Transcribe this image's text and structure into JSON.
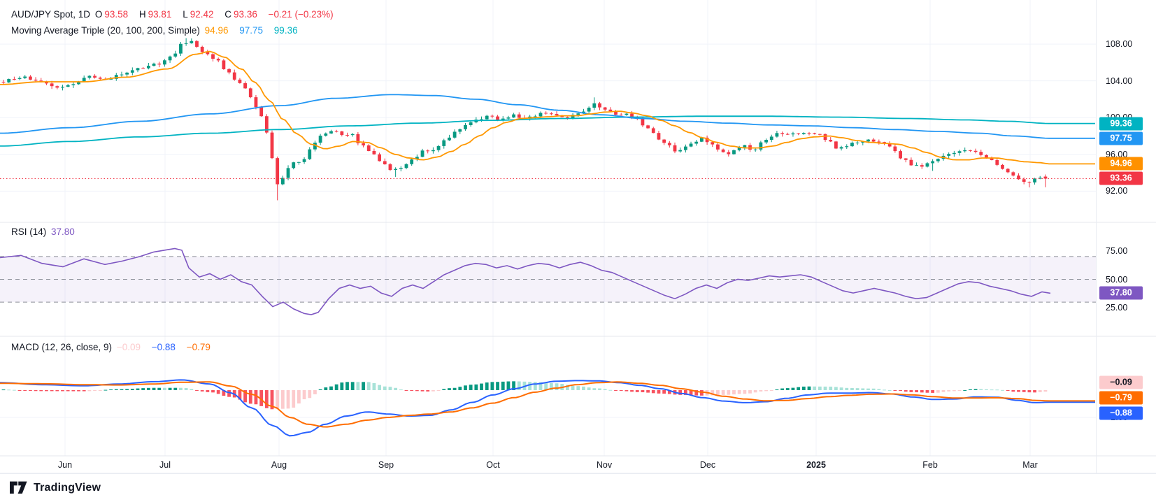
{
  "colors": {
    "up": "#089981",
    "down": "#F23645",
    "ma20": "#FF9800",
    "ma100": "#2196F3",
    "ma200": "#00B3C2",
    "macd_line": "#2962FF",
    "signal_line": "#FF6D00",
    "hist_pos": "#089981",
    "hist_pos_light": "#A8E2D8",
    "hist_neg": "#F7525F",
    "hist_neg_light": "#FCCBCD",
    "rsi_line": "#7E57C2",
    "rsi_band_fill": "rgba(126,87,194,0.08)",
    "rsi_dash": "#8A8E98",
    "grid": "#F0F3FA",
    "separator": "#E4E7EE",
    "last_price": "#F23645",
    "text": "#131722"
  },
  "legend_main": {
    "symbol": "AUD/JPY Spot, 1D",
    "o_label": "O",
    "o_value": "93.58",
    "h_label": "H",
    "h_value": "93.81",
    "l_label": "L",
    "l_value": "92.42",
    "c_label": "C",
    "c_value": "93.36",
    "change": "−0.21 (−0.23%)"
  },
  "legend_ma": {
    "title": "Moving Average Triple (20, 100, 200, Simple)",
    "ma20_value": "94.96",
    "ma100_value": "97.75",
    "ma200_value": "99.36"
  },
  "legend_rsi": {
    "title": "RSI (14)",
    "value": "37.80"
  },
  "legend_macd": {
    "title": "MACD (12, 26, close, 9)",
    "hist_value": "−0.09",
    "macd_value": "−0.88",
    "signal_value": "−0.79"
  },
  "footer": {
    "brand": "TradingView"
  },
  "chart_data": {
    "type": "candlestick",
    "main": {
      "type": "candlestick",
      "symbol": "AUD/JPY Spot",
      "interval": "1D",
      "last": {
        "o": 93.58,
        "h": 93.81,
        "l": 92.42,
        "c": 93.36,
        "change": -0.21,
        "change_pct": -0.23
      },
      "ylim": [
        88.6,
        112.8
      ],
      "yticks": [
        {
          "v": 108,
          "label": "108.00"
        },
        {
          "v": 104,
          "label": "104.00"
        },
        {
          "v": 100,
          "label": "100.00"
        },
        {
          "v": 96,
          "label": "96.00"
        },
        {
          "v": 92,
          "label": "92.00"
        }
      ],
      "badges": [
        {
          "v": 99.36,
          "label": "99.36",
          "bg": "#00B3C2"
        },
        {
          "v": 97.75,
          "label": "97.75",
          "bg": "#2196F3"
        },
        {
          "v": 94.96,
          "label": "94.96",
          "bg": "#FF9100"
        },
        {
          "v": 93.36,
          "label": "93.36",
          "bg": "#F23645"
        }
      ],
      "last_price_line": 93.36,
      "close_path": {
        "x": [
          0,
          30,
          60,
          80,
          105,
          125,
          150,
          175,
          200,
          225,
          245,
          262,
          272,
          282,
          295,
          310,
          325,
          340,
          352,
          362,
          372,
          380,
          388,
          397,
          404,
          412,
          422,
          432,
          442,
          452,
          462,
          472,
          482,
          492,
          502,
          512,
          522,
          532,
          542,
          552,
          562,
          570,
          580,
          592,
          604,
          616,
          628,
          640,
          652,
          664,
          676,
          688,
          700,
          712,
          724,
          736,
          748,
          760,
          772,
          784,
          796,
          808,
          820,
          832,
          844,
          852,
          860,
          872,
          884,
          896,
          908,
          920,
          932,
          944,
          956,
          968,
          980,
          992,
          1004,
          1016,
          1028,
          1040,
          1052,
          1064,
          1076,
          1088,
          1100,
          1112,
          1124,
          1136,
          1148,
          1160,
          1172,
          1184,
          1196,
          1208,
          1220,
          1232,
          1244,
          1256,
          1268,
          1280,
          1292,
          1304,
          1316,
          1328,
          1340,
          1352,
          1364,
          1376,
          1388,
          1400,
          1412,
          1424,
          1436,
          1448,
          1460,
          1470,
          1480,
          1490,
          1502
        ],
        "v": [
          103.9,
          104.4,
          103.8,
          103.3,
          103.6,
          104.5,
          104.1,
          104.7,
          105.4,
          105.8,
          106.6,
          108.1,
          108.4,
          107.6,
          107.0,
          106.3,
          104.9,
          103.9,
          103.1,
          101.7,
          100.2,
          98.6,
          95.8,
          92.8,
          93.4,
          94.6,
          95.3,
          95.2,
          96.5,
          97.4,
          98.2,
          98.6,
          98.4,
          97.9,
          98.3,
          97.3,
          96.8,
          96.2,
          95.3,
          94.8,
          94.2,
          94.5,
          94.8,
          95.6,
          96.3,
          96.2,
          97.0,
          97.8,
          98.5,
          99.2,
          99.6,
          99.9,
          100.2,
          99.7,
          99.9,
          100.3,
          99.9,
          100.1,
          100.4,
          100.6,
          100.2,
          99.9,
          100.3,
          100.5,
          101.2,
          101.6,
          100.9,
          100.6,
          100.3,
          100.5,
          100.0,
          99.2,
          98.4,
          97.6,
          96.9,
          96.3,
          96.9,
          97.3,
          97.8,
          97.2,
          96.4,
          96.0,
          96.5,
          96.9,
          96.4,
          97.2,
          97.9,
          98.3,
          98.1,
          98.3,
          98.2,
          98.4,
          98.1,
          97.5,
          96.6,
          96.8,
          97.2,
          97.4,
          97.6,
          97.3,
          97.1,
          96.3,
          95.4,
          94.9,
          94.7,
          95.0,
          95.4,
          95.9,
          96.2,
          96.5,
          96.4,
          96.1,
          95.6,
          95.0,
          94.4,
          93.8,
          93.2,
          93.0,
          93.3,
          93.6,
          93.36
        ]
      },
      "wick_lows": [
        [
          397,
          91.0
        ],
        [
          566,
          93.55
        ],
        [
          1330,
          94.2
        ],
        [
          1470,
          92.4
        ]
      ],
      "wick_highs": [
        [
          268,
          108.65
        ],
        [
          850,
          102.2
        ]
      ],
      "ma": [
        {
          "name": "SMA 20",
          "period": 20,
          "current": 94.96,
          "color": "#FF9800",
          "path": {
            "x": [
              0,
              60,
              120,
              180,
              240,
              280,
              300,
              320,
              345,
              365,
              385,
              405,
              425,
              445,
              465,
              485,
              505,
              525,
              545,
              565,
              585,
              605,
              625,
              645,
              665,
              685,
              705,
              725,
              745,
              765,
              785,
              805,
              825,
              845,
              865,
              885,
              905,
              925,
              945,
              965,
              985,
              1005,
              1025,
              1045,
              1065,
              1085,
              1105,
              1125,
              1145,
              1165,
              1185,
              1205,
              1225,
              1245,
              1265,
              1285,
              1305,
              1325,
              1345,
              1365,
              1385,
              1405,
              1425,
              1445,
              1465,
              1485,
              1502
            ],
            "v": [
              103.6,
              103.9,
              103.9,
              104.4,
              105.3,
              106.9,
              107.2,
              106.6,
              105.3,
              103.8,
              101.9,
              99.8,
              98.2,
              97.1,
              96.6,
              96.9,
              97.4,
              97.3,
              96.7,
              96.0,
              95.6,
              95.4,
              95.7,
              96.3,
              97.1,
              98.0,
              98.9,
              99.5,
              99.9,
              100.0,
              100.1,
              100.2,
              100.2,
              100.4,
              100.6,
              100.7,
              100.5,
              100.2,
              99.7,
              99.1,
              98.4,
              97.8,
              97.3,
              96.9,
              96.7,
              96.7,
              96.9,
              97.3,
              97.7,
              97.9,
              98.0,
              97.8,
              97.5,
              97.3,
              97.2,
              97.1,
              96.7,
              96.2,
              95.7,
              95.4,
              95.4,
              95.6,
              95.6,
              95.4,
              95.2,
              95.1,
              94.96
            ]
          }
        },
        {
          "name": "SMA 100",
          "period": 100,
          "current": 97.75,
          "color": "#2196F3",
          "path": {
            "x": [
              0,
              100,
              200,
              300,
              400,
              480,
              560,
              620,
              680,
              740,
              800,
              860,
              920,
              980,
              1040,
              1100,
              1160,
              1220,
              1280,
              1340,
              1400,
              1450,
              1502
            ],
            "v": [
              98.3,
              98.9,
              99.6,
              100.4,
              101.3,
              102.1,
              102.5,
              102.4,
              102.0,
              101.4,
              100.8,
              100.3,
              99.9,
              99.6,
              99.4,
              99.2,
              99.1,
              98.9,
              98.7,
              98.5,
              98.3,
              98.0,
              97.75
            ]
          }
        },
        {
          "name": "SMA 200",
          "period": 200,
          "current": 99.36,
          "color": "#00B3C2",
          "path": {
            "x": [
              0,
              100,
              200,
              300,
              400,
              500,
              600,
              700,
              800,
              900,
              1000,
              1100,
              1200,
              1300,
              1380,
              1440,
              1502
            ],
            "v": [
              96.9,
              97.4,
              97.9,
              98.3,
              98.7,
              99.1,
              99.4,
              99.7,
              99.9,
              100.05,
              100.15,
              100.15,
              100.05,
              99.9,
              99.75,
              99.6,
              99.36
            ]
          }
        }
      ]
    },
    "rsi": {
      "type": "line",
      "period": 14,
      "current": 37.8,
      "ylim": [
        0,
        100
      ],
      "bands": [
        70,
        50,
        30
      ],
      "yticks": [
        {
          "v": 75,
          "label": "75.00"
        },
        {
          "v": 50,
          "label": "50.00"
        },
        {
          "v": 25,
          "label": "25.00"
        }
      ],
      "badges": [
        {
          "v": 37.8,
          "label": "37.80",
          "bg": "#7E57C2"
        }
      ],
      "path": {
        "x": [
          0,
          30,
          60,
          90,
          120,
          150,
          175,
          200,
          220,
          240,
          250,
          260,
          270,
          285,
          300,
          315,
          330,
          345,
          360,
          375,
          390,
          405,
          420,
          435,
          445,
          455,
          470,
          485,
          500,
          515,
          530,
          545,
          560,
          575,
          590,
          605,
          620,
          635,
          650,
          665,
          680,
          695,
          710,
          725,
          740,
          755,
          770,
          785,
          800,
          815,
          830,
          845,
          860,
          875,
          890,
          905,
          920,
          935,
          950,
          965,
          980,
          995,
          1010,
          1025,
          1040,
          1055,
          1070,
          1085,
          1100,
          1115,
          1130,
          1145,
          1160,
          1175,
          1190,
          1205,
          1220,
          1235,
          1250,
          1265,
          1280,
          1295,
          1310,
          1325,
          1340,
          1355,
          1370,
          1385,
          1400,
          1415,
          1430,
          1445,
          1460,
          1475,
          1490,
          1502
        ],
        "v": [
          69,
          71,
          64,
          61,
          68,
          63,
          66,
          70,
          74,
          76,
          77,
          75.5,
          60,
          52,
          55,
          50,
          54,
          48,
          45,
          35,
          26,
          30,
          24,
          20,
          19,
          21,
          33,
          42,
          45,
          42,
          44,
          38,
          35,
          42,
          45,
          42,
          48,
          54,
          58,
          62,
          64,
          63,
          60,
          62,
          59,
          62,
          64,
          63,
          60,
          63,
          65,
          62,
          58,
          56,
          52,
          48,
          44,
          40,
          36,
          33,
          37,
          42,
          45,
          42,
          47,
          50,
          49,
          51,
          53,
          52,
          53,
          54,
          52,
          48,
          44,
          40,
          38,
          40,
          42,
          40,
          38,
          35,
          33,
          34,
          38,
          42,
          46,
          48,
          47,
          44,
          42,
          40,
          37,
          35,
          39,
          37.8
        ]
      }
    },
    "macd": {
      "type": "macd",
      "params": "12, 26, close, 9",
      "hist": -0.09,
      "macd": -0.88,
      "signal": -0.79,
      "ylim": [
        -4.82,
        3.95
      ],
      "yticks": [
        {
          "v": -2,
          "label": "−2.00"
        }
      ],
      "badges": [
        {
          "v": -0.09,
          "label": "−0.09",
          "bg": "#FCCBCD",
          "fg": "#131722"
        },
        {
          "v": -0.79,
          "label": "−0.79",
          "bg": "#FF6D00"
        },
        {
          "v": -0.88,
          "label": "−0.88",
          "bg": "#2962FF"
        }
      ],
      "macd_path": {
        "x": [
          0,
          60,
          120,
          170,
          220,
          260,
          300,
          330,
          360,
          390,
          415,
          440,
          465,
          495,
          525,
          555,
          585,
          615,
          645,
          675,
          705,
          735,
          765,
          795,
          825,
          855,
          885,
          915,
          945,
          975,
          1005,
          1035,
          1065,
          1095,
          1125,
          1155,
          1185,
          1215,
          1245,
          1275,
          1305,
          1335,
          1365,
          1395,
          1425,
          1455,
          1480,
          1502
        ],
        "v": [
          0.55,
          0.4,
          0.32,
          0.45,
          0.62,
          0.75,
          0.45,
          -0.2,
          -1.3,
          -2.6,
          -3.35,
          -3.1,
          -2.5,
          -1.9,
          -1.6,
          -1.75,
          -1.9,
          -1.85,
          -1.45,
          -0.9,
          -0.35,
          0.1,
          0.45,
          0.65,
          0.7,
          0.68,
          0.55,
          0.35,
          0.1,
          -0.25,
          -0.55,
          -0.8,
          -0.92,
          -0.85,
          -0.6,
          -0.35,
          -0.22,
          -0.22,
          -0.18,
          -0.28,
          -0.5,
          -0.68,
          -0.65,
          -0.5,
          -0.52,
          -0.75,
          -0.92,
          -0.88
        ]
      },
      "signal_path": {
        "x": [
          0,
          60,
          120,
          170,
          220,
          260,
          300,
          330,
          360,
          390,
          415,
          440,
          465,
          495,
          525,
          555,
          585,
          615,
          645,
          675,
          705,
          735,
          765,
          795,
          825,
          855,
          885,
          915,
          945,
          975,
          1005,
          1035,
          1065,
          1095,
          1125,
          1155,
          1185,
          1215,
          1245,
          1275,
          1305,
          1335,
          1365,
          1395,
          1425,
          1455,
          1480,
          1502
        ],
        "v": [
          0.5,
          0.47,
          0.4,
          0.38,
          0.45,
          0.58,
          0.6,
          0.3,
          -0.3,
          -1.2,
          -2.0,
          -2.5,
          -2.7,
          -2.5,
          -2.2,
          -2.0,
          -1.85,
          -1.75,
          -1.6,
          -1.3,
          -0.95,
          -0.55,
          -0.15,
          0.15,
          0.4,
          0.55,
          0.6,
          0.5,
          0.35,
          0.1,
          -0.15,
          -0.45,
          -0.65,
          -0.78,
          -0.75,
          -0.62,
          -0.48,
          -0.38,
          -0.3,
          -0.28,
          -0.35,
          -0.48,
          -0.58,
          -0.58,
          -0.56,
          -0.62,
          -0.75,
          -0.79
        ]
      }
    },
    "time_axis": {
      "labels": [
        "Jun",
        "Jul",
        "Aug",
        "Sep",
        "Oct",
        "Nov",
        "Dec",
        "2025",
        "Feb",
        "Mar"
      ],
      "x": [
        93,
        236,
        399,
        552,
        705,
        864,
        1012,
        1167,
        1330,
        1473
      ],
      "emphasis": "2025"
    }
  }
}
